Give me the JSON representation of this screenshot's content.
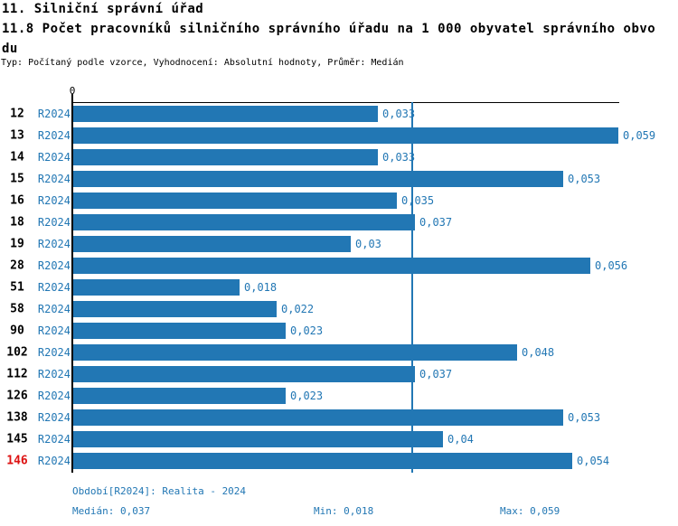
{
  "header": {
    "title_line1": "11. Silniční správní úřad",
    "title_line2": "11.8 Počet pracovníků silničního správního úřadu na 1 000 obyvatel správního obvo",
    "title_line3": "du",
    "subtitle": "Typ: Počítaný podle vzorce, Vyhodnocení: Absolutní hodnoty, Průměr: Medián"
  },
  "chart_data": {
    "type": "bar",
    "orientation": "horizontal",
    "title": "11.8 Počet pracovníků silničního správního úřadu na 1 000 obyvatel správního obvodu",
    "axis_zero_label": "0",
    "series_label": "R2024",
    "categories": [
      "12",
      "13",
      "14",
      "15",
      "16",
      "18",
      "19",
      "28",
      "51",
      "58",
      "90",
      "102",
      "112",
      "126",
      "138",
      "145",
      "146"
    ],
    "values": [
      0.033,
      0.059,
      0.033,
      0.053,
      0.035,
      0.037,
      0.03,
      0.056,
      0.018,
      0.022,
      0.023,
      0.048,
      0.037,
      0.023,
      0.053,
      0.04,
      0.054
    ],
    "value_labels": [
      "0,033",
      "0,059",
      "0,033",
      "0,053",
      "0,035",
      "0,037",
      "0,03",
      "0,056",
      "0,018",
      "0,022",
      "0,023",
      "0,048",
      "0,037",
      "0,023",
      "0,053",
      "0,04",
      "0,054"
    ],
    "highlighted_category": "146",
    "median_value": 0.037,
    "min_value": 0.018,
    "max_value": 0.059,
    "xlim": [
      0,
      0.059
    ],
    "grid": false,
    "legend_position": "none",
    "bar_color": "#2277b4",
    "text_color": "#2277b4",
    "median_line_color": "#2277b4",
    "highlight_color": "#dd1111"
  },
  "footer": {
    "period_label": "Období[R2024]: Realita - 2024",
    "median_label": "Medián: 0,037",
    "min_label": "Min: 0,018",
    "max_label": "Max: 0,059"
  }
}
